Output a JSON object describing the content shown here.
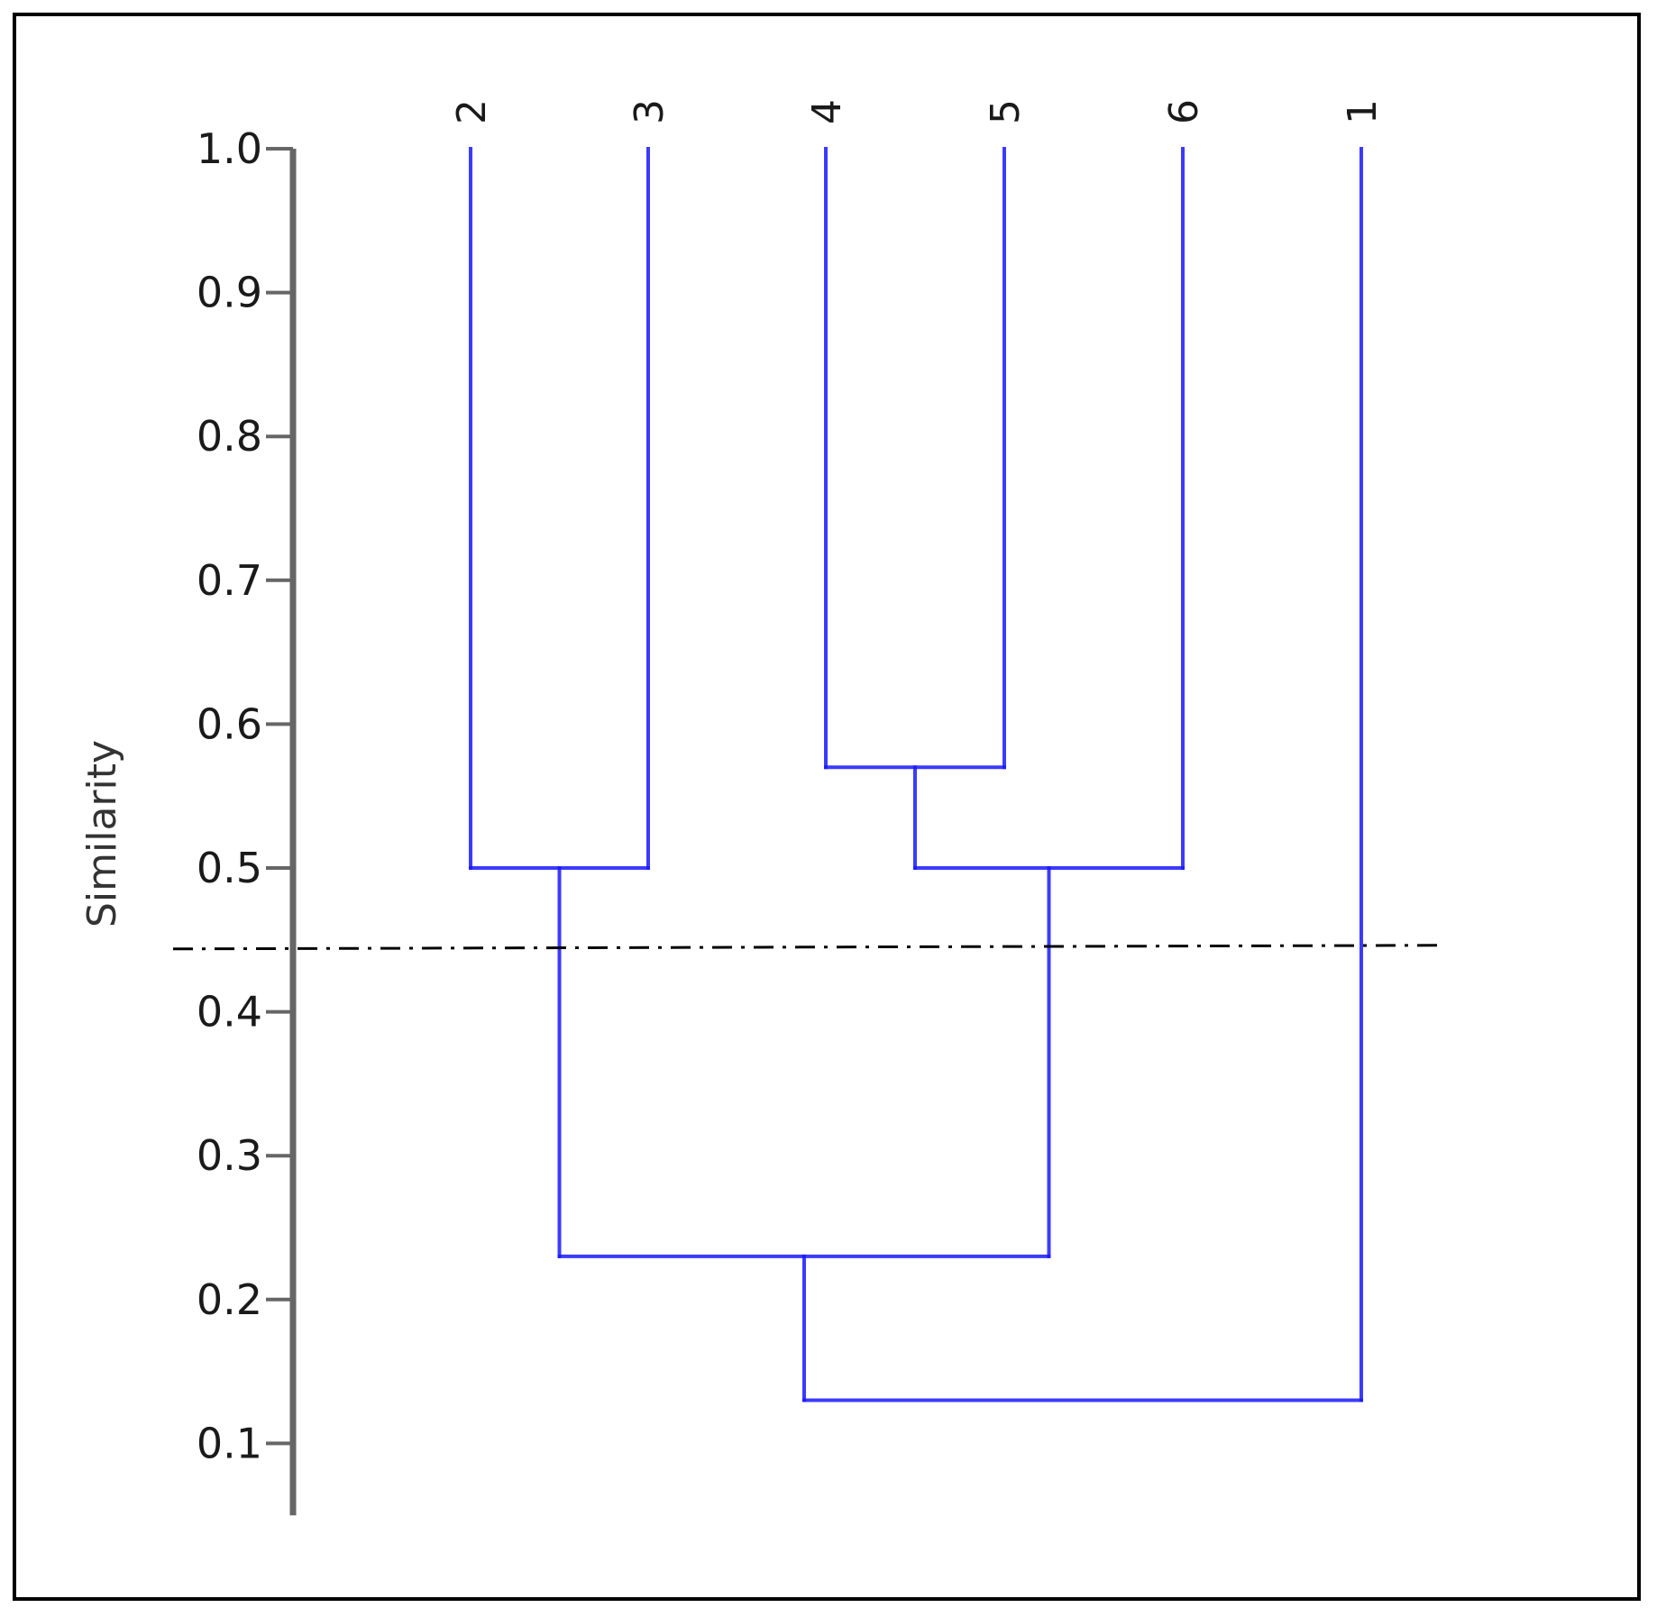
{
  "chart_data": {
    "type": "dendrogram",
    "ylabel": "Similarity",
    "ylim": [
      0.05,
      1.0
    ],
    "yticks": [
      "1.0",
      "0.9",
      "0.8",
      "0.7",
      "0.6",
      "0.5",
      "0.4",
      "0.3",
      "0.2",
      "0.1"
    ],
    "leaves": [
      "2",
      "3",
      "4",
      "5",
      "6",
      "1"
    ],
    "merges": [
      {
        "nodes": [
          "4",
          "5"
        ],
        "similarity": 0.57
      },
      {
        "nodes": [
          "2",
          "3"
        ],
        "similarity": 0.5
      },
      {
        "nodes": [
          "4-5",
          "6"
        ],
        "similarity": 0.5
      },
      {
        "nodes": [
          "2-3",
          "4-5-6"
        ],
        "similarity": 0.23
      },
      {
        "nodes": [
          "2-3-4-5-6",
          "1"
        ],
        "similarity": 0.13
      }
    ],
    "cutoff_line": {
      "similarity": 0.445,
      "style": "dash-dot"
    },
    "line_color": "#1a1aff",
    "axis_color": "#666666"
  }
}
